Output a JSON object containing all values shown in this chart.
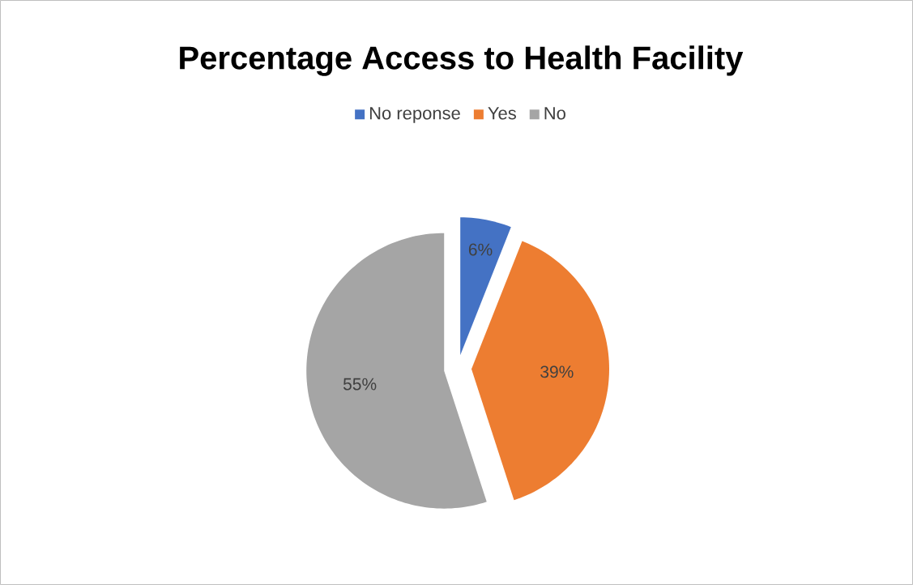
{
  "chart_data": {
    "type": "pie",
    "title": "Percentage Access to Health Facility",
    "categories": [
      "No reponse",
      "Yes",
      "No"
    ],
    "values": [
      6,
      39,
      55
    ],
    "colors": [
      "#4472c4",
      "#ed7d31",
      "#a5a5a5"
    ],
    "value_labels": [
      "6%",
      "39%",
      "55%"
    ],
    "legend": "top"
  }
}
